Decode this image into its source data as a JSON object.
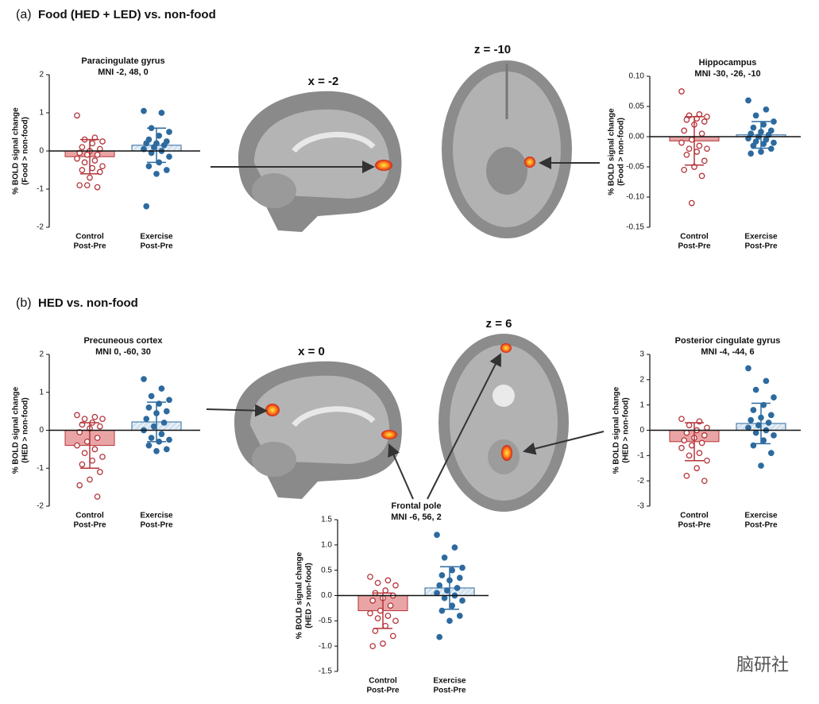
{
  "panels": [
    {
      "label": "(a)",
      "title": "Food (HED + LED) vs. non-food"
    },
    {
      "label": "(b)",
      "title": "HED vs. non-food"
    }
  ],
  "slices": [
    "x = -2",
    "z = -10",
    "x = 0",
    "z = 6"
  ],
  "watermark": "脑研社",
  "chart_data": [
    {
      "type": "bar",
      "title": "Paracingulate gyrus",
      "subtitle": "MNI -2, 48, 0",
      "ylabel": [
        "% BOLD signal change",
        "(Food > non-food)"
      ],
      "categories": [
        [
          "Control",
          "Post-Pre"
        ],
        [
          "Exercise",
          "Post-Pre"
        ]
      ],
      "colors": [
        "#b5343a",
        "#2d6a9f"
      ],
      "values": [
        -0.15,
        0.15
      ],
      "errors": [
        0.45,
        0.45
      ],
      "points": [
        [
          0.93,
          0.35,
          0.3,
          0.25,
          0.2,
          0.1,
          0.05,
          0.0,
          -0.05,
          -0.1,
          -0.1,
          -0.2,
          -0.25,
          -0.3,
          -0.4,
          -0.45,
          -0.5,
          -0.55,
          -0.7,
          -0.9,
          -0.95,
          -0.9
        ],
        [
          1.05,
          1.0,
          0.6,
          0.5,
          0.4,
          0.3,
          0.25,
          0.2,
          0.2,
          0.15,
          0.1,
          0.05,
          0.0,
          -0.05,
          -0.15,
          -0.3,
          -0.4,
          -0.5,
          -0.6,
          -1.45
        ]
      ],
      "ylim": [
        -2,
        2
      ],
      "yticks": [
        2,
        1,
        0,
        -1,
        -2
      ]
    },
    {
      "type": "bar",
      "title": "Hippocampus",
      "subtitle": "MNI -30, -26, -10",
      "ylabel": [
        "% BOLD signal change",
        "(Food > non-food)"
      ],
      "categories": [
        [
          "Control",
          "Post-Pre"
        ],
        [
          "Exercise",
          "Post-Pre"
        ]
      ],
      "colors": [
        "#b5343a",
        "#2d6a9f"
      ],
      "values": [
        -0.007,
        0.003
      ],
      "errors": [
        0.04,
        0.022
      ],
      "points": [
        [
          0.075,
          0.037,
          0.035,
          0.033,
          0.03,
          0.028,
          0.025,
          0.02,
          0.01,
          0.005,
          -0.005,
          -0.01,
          -0.015,
          -0.02,
          -0.02,
          -0.025,
          -0.03,
          -0.04,
          -0.05,
          -0.055,
          -0.065,
          -0.11
        ],
        [
          0.06,
          0.045,
          0.035,
          0.025,
          0.02,
          0.015,
          0.01,
          0.008,
          0.005,
          0.003,
          0.0,
          -0.003,
          -0.005,
          -0.008,
          -0.01,
          -0.012,
          -0.015,
          -0.02,
          -0.025,
          -0.028
        ]
      ],
      "ylim": [
        -0.15,
        0.1
      ],
      "yticks": [
        {
          "value": 0.1,
          "label": "0.10"
        },
        0.05,
        {
          "value": 0,
          "label": "0.00"
        },
        -0.05,
        {
          "value": -0.1,
          "label": "-0.10"
        },
        -0.15
      ]
    },
    {
      "type": "bar",
      "title": "Precuneous cortex",
      "subtitle": "MNI 0, -60, 30",
      "ylabel": [
        "% BOLD signal change",
        "(HED > non-food)"
      ],
      "categories": [
        [
          "Control",
          "Post-Pre"
        ],
        [
          "Exercise",
          "Post-Pre"
        ]
      ],
      "colors": [
        "#b5343a",
        "#2d6a9f"
      ],
      "values": [
        -0.4,
        0.22
      ],
      "errors": [
        0.6,
        0.52
      ],
      "points": [
        [
          0.4,
          0.35,
          0.3,
          0.3,
          0.2,
          0.15,
          0.1,
          0.05,
          -0.05,
          -0.2,
          -0.3,
          -0.4,
          -0.5,
          -0.6,
          -0.7,
          -0.8,
          -0.9,
          -1.1,
          -1.3,
          -1.45,
          -1.75
        ],
        [
          1.35,
          1.1,
          0.9,
          0.8,
          0.7,
          0.6,
          0.5,
          0.45,
          0.3,
          0.2,
          0.1,
          0.0,
          -0.1,
          -0.2,
          -0.25,
          -0.3,
          -0.4,
          -0.5,
          -0.55
        ]
      ],
      "ylim": [
        -2,
        2
      ],
      "yticks": [
        2,
        1,
        0,
        -1,
        -2
      ]
    },
    {
      "type": "bar",
      "title": "Posterior cingulate gyrus",
      "subtitle": "MNI -4, -44, 6",
      "ylabel": [
        "% BOLD signal change",
        "(HED > non-food)"
      ],
      "categories": [
        [
          "Control",
          "Post-Pre"
        ],
        [
          "Exercise",
          "Post-Pre"
        ]
      ],
      "colors": [
        "#b5343a",
        "#2d6a9f"
      ],
      "values": [
        -0.45,
        0.27
      ],
      "errors": [
        0.75,
        0.8
      ],
      "points": [
        [
          0.45,
          0.35,
          0.2,
          0.1,
          0.0,
          -0.1,
          -0.2,
          -0.3,
          -0.4,
          -0.5,
          -0.6,
          -0.7,
          -0.9,
          -1.0,
          -1.2,
          -1.5,
          -1.8,
          -2.0
        ],
        [
          2.45,
          1.95,
          1.6,
          1.3,
          1.0,
          0.8,
          0.6,
          0.5,
          0.4,
          0.3,
          0.2,
          0.1,
          0.0,
          -0.1,
          -0.2,
          -0.4,
          -0.6,
          -0.9,
          -1.4
        ]
      ],
      "ylim": [
        -3,
        3
      ],
      "yticks": [
        3,
        2,
        1,
        0,
        -1,
        -2,
        -3
      ]
    },
    {
      "type": "bar",
      "title": "Frontal pole",
      "subtitle": "MNI -6, 56, 2",
      "ylabel": [
        "% BOLD signal change",
        "(HED > non-food)"
      ],
      "categories": [
        [
          "Control",
          "Post-Pre"
        ],
        [
          "Exercise",
          "Post-Pre"
        ]
      ],
      "colors": [
        "#b5343a",
        "#2d6a9f"
      ],
      "values": [
        -0.3,
        0.15
      ],
      "errors": [
        0.35,
        0.42
      ],
      "points": [
        [
          0.37,
          0.3,
          0.25,
          0.2,
          0.1,
          0.05,
          0.0,
          -0.05,
          -0.1,
          -0.2,
          -0.3,
          -0.35,
          -0.4,
          -0.45,
          -0.5,
          -0.6,
          -0.7,
          -0.8,
          -0.95,
          -1.0
        ],
        [
          1.2,
          0.95,
          0.75,
          0.55,
          0.5,
          0.4,
          0.35,
          0.3,
          0.2,
          0.15,
          0.1,
          0.05,
          0.0,
          -0.05,
          -0.1,
          -0.2,
          -0.3,
          -0.4,
          -0.5,
          -0.82
        ]
      ],
      "ylim": [
        -1.5,
        1.5
      ],
      "yticks": [
        1.5,
        {
          "value": 1,
          "label": "1.0"
        },
        0.5,
        {
          "value": 0,
          "label": "0.0"
        },
        -0.5,
        {
          "value": -1,
          "label": "-1.0"
        },
        -1.5
      ]
    }
  ]
}
